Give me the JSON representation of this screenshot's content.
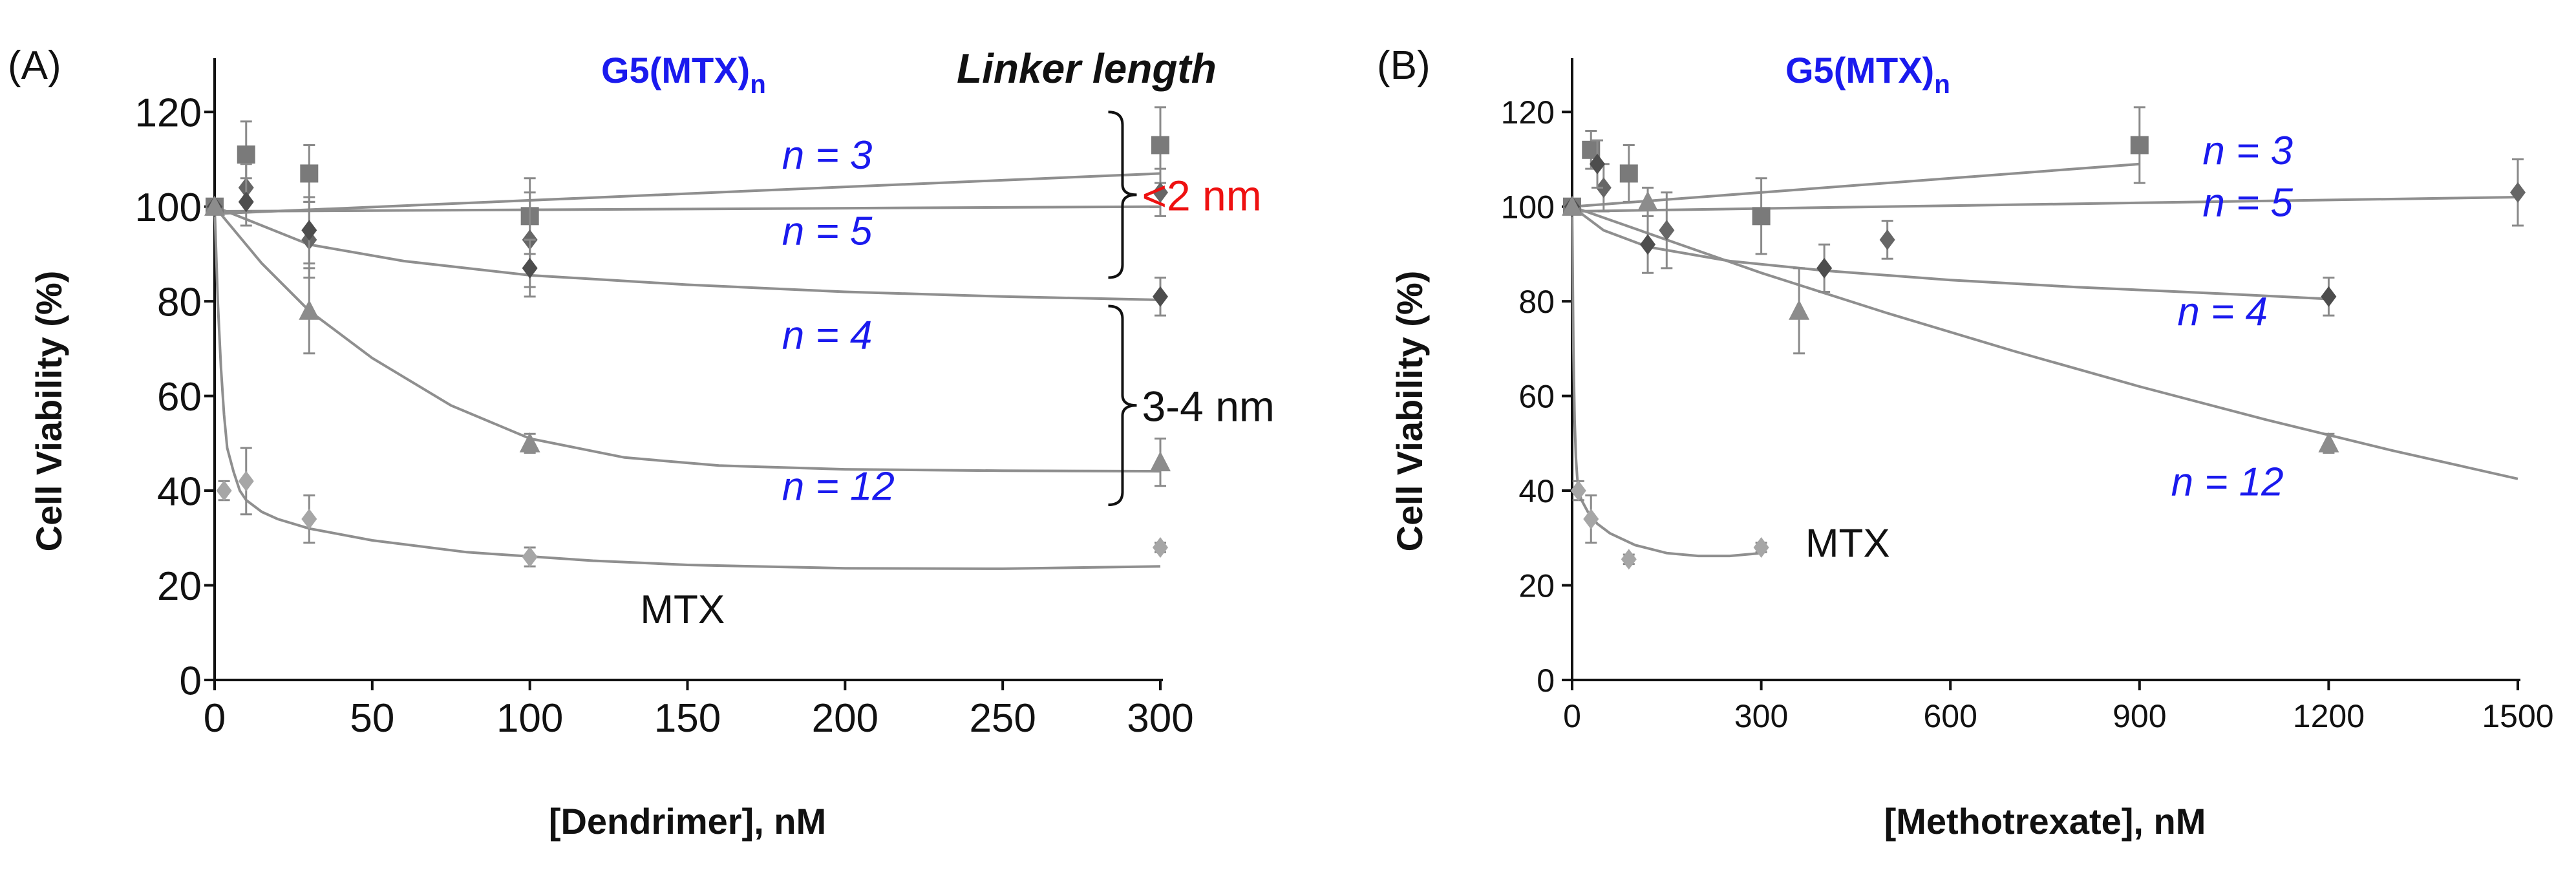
{
  "colors": {
    "n3": "#7a7a7a",
    "n5": "#666666",
    "n4": "#4d4d4d",
    "n12": "#8c8c8c",
    "mtx": "#a6a6a6",
    "fit": "#8f8f8f",
    "blue": "#1a1aee",
    "red": "#ee1111",
    "axis": "#111111"
  },
  "chart_data": [
    {
      "panel": "(A)",
      "type": "scatter",
      "title": "G5(MTX)",
      "title_sub": "n",
      "xlabel": "[Dendrimer], nM",
      "ylabel": "Cell Viability (%)",
      "xlim": [
        0,
        300
      ],
      "ylim": [
        0,
        130
      ],
      "xticks": [
        0,
        50,
        100,
        150,
        200,
        250,
        300
      ],
      "yticks": [
        0,
        20,
        40,
        60,
        80,
        100,
        120
      ],
      "grid": false,
      "linker_title": "Linker length",
      "brackets": [
        {
          "label": "<2 nm",
          "color": "red",
          "y_range": [
            85,
            120
          ]
        },
        {
          "label": "3-4 nm",
          "color": "black",
          "y_range": [
            37,
            79
          ]
        }
      ],
      "series": [
        {
          "name": "n = 3",
          "marker": "square",
          "color_key": "n3",
          "x": [
            0,
            10,
            30,
            100,
            300
          ],
          "y": [
            100,
            111,
            107,
            98,
            113
          ],
          "err": [
            0,
            7,
            6,
            8,
            8
          ],
          "fit": {
            "x": [
              0,
              300
            ],
            "y": [
              98.5,
              107
            ]
          }
        },
        {
          "name": "n = 5",
          "marker": "diamond",
          "color_key": "n5",
          "x": [
            0,
            10,
            30,
            100,
            300
          ],
          "y": [
            100,
            104,
            93,
            93,
            103
          ],
          "err": [
            0,
            5,
            8,
            10,
            5
          ],
          "fit": {
            "x": [
              0,
              300
            ],
            "y": [
              99,
              100
            ]
          }
        },
        {
          "name": "n = 4",
          "marker": "diamond",
          "color_key": "n4",
          "x": [
            0,
            10,
            30,
            100,
            300
          ],
          "y": [
            100,
            101,
            95,
            87,
            81
          ],
          "err": [
            0,
            5,
            7,
            6,
            4
          ],
          "fit": {
            "x": [
              0,
              30,
              60,
              100,
              150,
              200,
              250,
              300
            ],
            "y": [
              100,
              92,
              88.5,
              85.5,
              83.5,
              82,
              81,
              80.3
            ]
          }
        },
        {
          "name": "n = 12",
          "marker": "triangle",
          "color_key": "n12",
          "x": [
            0,
            30,
            100,
            300
          ],
          "y": [
            100,
            78,
            50,
            46
          ],
          "err": [
            0,
            9,
            2,
            5
          ],
          "fit": {
            "x": [
              0,
              15,
              30,
              50,
              75,
              100,
              130,
              160,
              200,
              250,
              300
            ],
            "y": [
              100,
              88,
              78,
              68,
              58,
              51,
              47,
              45.3,
              44.5,
              44.2,
              44.1
            ]
          }
        },
        {
          "name": "MTX",
          "marker": "diamond",
          "color_key": "mtx",
          "x": [
            3,
            10,
            30,
            100,
            300
          ],
          "y": [
            40,
            42,
            34,
            26,
            28
          ],
          "err": [
            2,
            7,
            5,
            2,
            1
          ],
          "fit": {
            "x": [
              0,
              1,
              2,
              3,
              4,
              6,
              8,
              10,
              15,
              20,
              30,
              50,
              80,
              120,
              150,
              200,
              250,
              300
            ],
            "y": [
              100,
              80,
              66,
              56,
              49,
              44,
              40,
              38,
              35.5,
              34,
              32,
              29.5,
              27,
              25.2,
              24.3,
              23.6,
              23.5,
              24
            ]
          }
        }
      ],
      "annotations": [
        {
          "text": "n = 3",
          "series": "n = 3",
          "x": 180,
          "y": 108
        },
        {
          "text": "n = 5",
          "series": "n = 5",
          "x": 180,
          "y": 92
        },
        {
          "text": "n = 4",
          "series": "n = 4",
          "x": 180,
          "y": 70
        },
        {
          "text": "n = 12",
          "series": "n = 12",
          "x": 180,
          "y": 38
        },
        {
          "text": "MTX",
          "series": "MTX",
          "x": 135,
          "y": 12
        }
      ]
    },
    {
      "panel": "(B)",
      "type": "scatter",
      "title": "G5(MTX)",
      "title_sub": "n",
      "xlabel": "[Methotrexate], nM",
      "ylabel": "Cell Viability (%)",
      "xlim": [
        0,
        1500
      ],
      "ylim": [
        0,
        130
      ],
      "xticks": [
        0,
        300,
        600,
        900,
        1200,
        1500
      ],
      "yticks": [
        0,
        20,
        40,
        60,
        80,
        100,
        120
      ],
      "grid": false,
      "series": [
        {
          "name": "n = 3",
          "marker": "square",
          "color_key": "n3",
          "x": [
            0,
            30,
            90,
            300,
            900
          ],
          "y": [
            100,
            112,
            107,
            98,
            113
          ],
          "err": [
            0,
            4,
            6,
            8,
            8
          ],
          "fit": {
            "x": [
              0,
              900
            ],
            "y": [
              100,
              109
            ]
          }
        },
        {
          "name": "n = 5",
          "marker": "diamond",
          "color_key": "n5",
          "x": [
            0,
            50,
            150,
            500,
            1500
          ],
          "y": [
            100,
            104,
            95,
            93,
            103
          ],
          "err": [
            0,
            5,
            8,
            4,
            7
          ],
          "fit": {
            "x": [
              0,
              1500
            ],
            "y": [
              99,
              102
            ]
          }
        },
        {
          "name": "n = 4",
          "marker": "diamond",
          "color_key": "n4",
          "x": [
            0,
            40,
            120,
            400,
            1200
          ],
          "y": [
            100,
            109,
            92,
            87,
            81
          ],
          "err": [
            0,
            5,
            6,
            5,
            4
          ],
          "fit": {
            "x": [
              0,
              50,
              120,
              250,
              400,
              600,
              800,
              1000,
              1200
            ],
            "y": [
              100,
              95,
              91.5,
              88.5,
              86.5,
              84.5,
              83,
              81.8,
              80.5
            ]
          }
        },
        {
          "name": "n = 12",
          "marker": "triangle",
          "color_key": "n12",
          "x": [
            0,
            120,
            360,
            1200
          ],
          "y": [
            100,
            101,
            78,
            50
          ],
          "err": [
            0,
            3,
            9,
            2
          ],
          "fit": {
            "x": [
              0,
              150,
              300,
              500,
              700,
              900,
              1100,
              1300,
              1500
            ],
            "y": [
              100,
              93,
              86,
              77.5,
              69.5,
              62,
              55,
              48.5,
              42.5
            ]
          }
        },
        {
          "name": "MTX",
          "marker": "diamond",
          "color_key": "mtx",
          "x": [
            10,
            30,
            90,
            300
          ],
          "y": [
            40,
            34,
            25.5,
            28
          ],
          "err": [
            2,
            5,
            1,
            1
          ],
          "fit": {
            "x": [
              0,
              2,
              4,
              6,
              8,
              10,
              15,
              25,
              40,
              60,
              100,
              150,
              200,
              250,
              300
            ],
            "y": [
              100,
              70,
              55,
              47,
              43,
              40,
              38,
              35.5,
              33,
              31,
              28.5,
              26.8,
              26.2,
              26.2,
              26.8
            ]
          }
        }
      ],
      "annotations": [
        {
          "text": "n = 3",
          "series": "n = 3",
          "x": 1000,
          "y": 109
        },
        {
          "text": "n = 5",
          "series": "n = 5",
          "x": 1000,
          "y": 98
        },
        {
          "text": "n = 4",
          "series": "n = 4",
          "x": 960,
          "y": 75
        },
        {
          "text": "n = 12",
          "series": "n = 12",
          "x": 950,
          "y": 39
        },
        {
          "text": "MTX",
          "series": "MTX",
          "x": 370,
          "y": 26
        }
      ]
    }
  ]
}
